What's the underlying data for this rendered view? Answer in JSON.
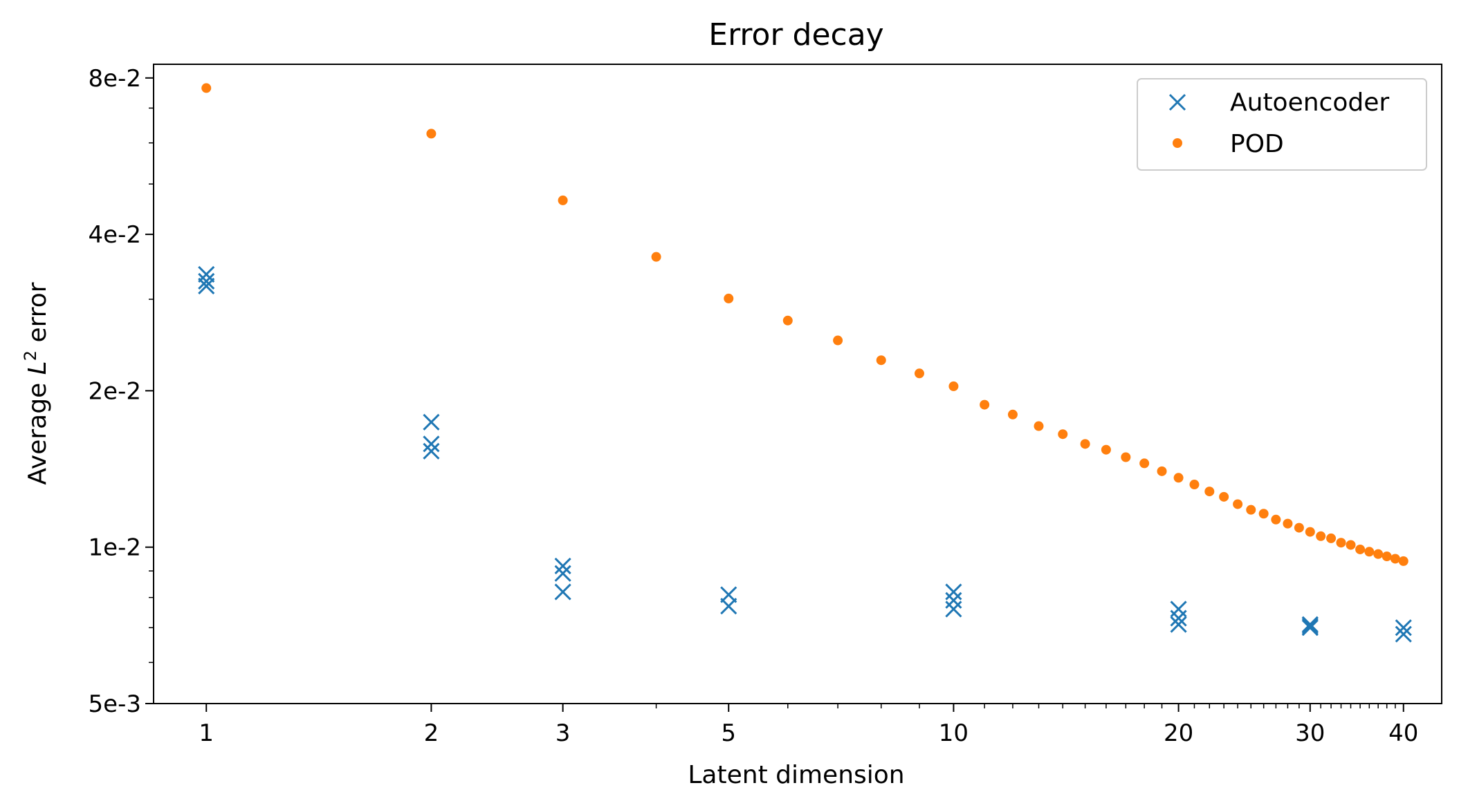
{
  "chart_data": {
    "type": "scatter",
    "title": "Error decay",
    "xlabel": "Latent dimension",
    "ylabel_prefix": "Average ",
    "ylabel_symbol": "L",
    "ylabel_exponent": "2",
    "ylabel_suffix": " error",
    "x_scale": "log",
    "y_scale": "log",
    "xlim": [
      0.85,
      45
    ],
    "ylim": [
      0.005,
      0.085
    ],
    "x_ticks": [
      1,
      2,
      3,
      5,
      10,
      20,
      30,
      40
    ],
    "x_tick_labels": [
      "1",
      "2",
      "3",
      "5",
      "10",
      "20",
      "30",
      "40"
    ],
    "y_ticks": [
      0.005,
      0.01,
      0.02,
      0.04,
      0.08
    ],
    "y_tick_labels": [
      "5e-3",
      "1e-2",
      "2e-2",
      "4e-2",
      "8e-2"
    ],
    "grid": false,
    "legend_position": "upper right",
    "series": [
      {
        "name": "Autoencoder",
        "marker": "x",
        "color": "#1f77b4",
        "points": [
          [
            1,
            0.0335
          ],
          [
            1,
            0.0325
          ],
          [
            1,
            0.0318
          ],
          [
            2,
            0.0174
          ],
          [
            2,
            0.0158
          ],
          [
            2,
            0.0153
          ],
          [
            3,
            0.0092
          ],
          [
            3,
            0.0089
          ],
          [
            3,
            0.0082
          ],
          [
            5,
            0.0081
          ],
          [
            5,
            0.0077
          ],
          [
            10,
            0.0082
          ],
          [
            10,
            0.0079
          ],
          [
            10,
            0.0076
          ],
          [
            20,
            0.0076
          ],
          [
            20,
            0.0073
          ],
          [
            20,
            0.0071
          ],
          [
            30,
            0.0071
          ],
          [
            30,
            0.00705
          ],
          [
            30,
            0.007
          ],
          [
            40,
            0.007
          ],
          [
            40,
            0.0068
          ]
        ]
      },
      {
        "name": "POD",
        "marker": "o",
        "color": "#ff7f0e",
        "x": [
          1,
          2,
          3,
          4,
          5,
          6,
          7,
          8,
          9,
          10,
          11,
          12,
          13,
          14,
          15,
          16,
          17,
          18,
          19,
          20,
          21,
          22,
          23,
          24,
          25,
          26,
          27,
          28,
          29,
          30,
          31,
          32,
          33,
          34,
          35,
          36,
          37,
          38,
          39,
          40
        ],
        "y": [
          0.0765,
          0.0625,
          0.0465,
          0.0362,
          0.0301,
          0.0273,
          0.025,
          0.0229,
          0.0216,
          0.0204,
          0.0188,
          0.018,
          0.0171,
          0.0165,
          0.0158,
          0.0154,
          0.0149,
          0.0145,
          0.014,
          0.0136,
          0.0132,
          0.0128,
          0.0125,
          0.0121,
          0.0118,
          0.0116,
          0.0113,
          0.0111,
          0.0109,
          0.0107,
          0.0105,
          0.0104,
          0.0102,
          0.0101,
          0.0099,
          0.0098,
          0.0097,
          0.0096,
          0.0095,
          0.0094
        ]
      }
    ]
  }
}
